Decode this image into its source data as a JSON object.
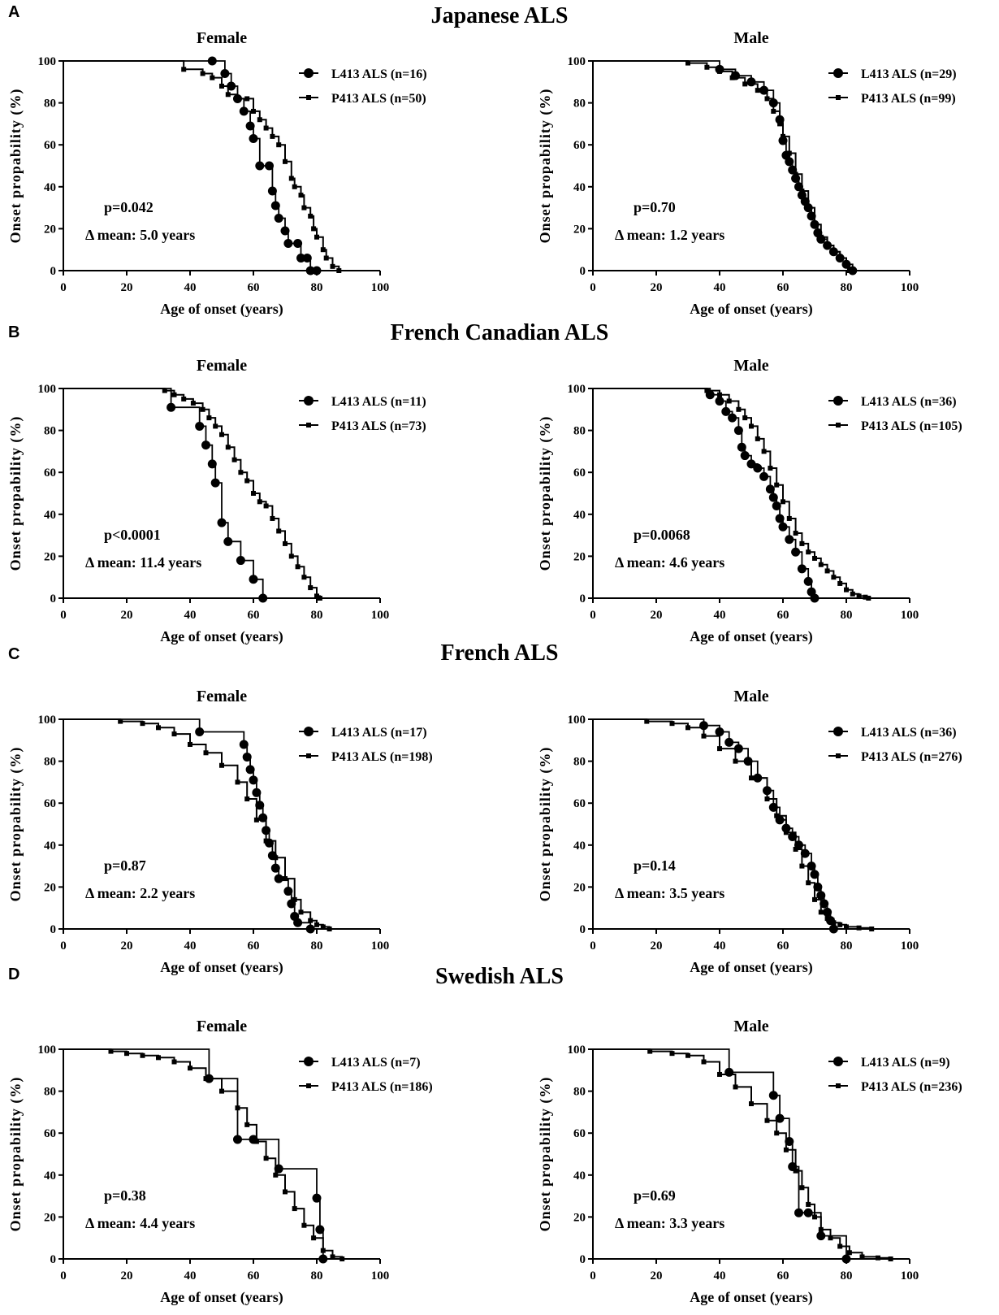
{
  "panels": [
    {
      "letter": "A",
      "title": "Japanese ALS"
    },
    {
      "letter": "B",
      "title": "French Canadian ALS"
    },
    {
      "letter": "C",
      "title": "French ALS"
    },
    {
      "letter": "D",
      "title": "Swedish ALS"
    }
  ],
  "chart_data": [
    {
      "type": "line",
      "panel": "A",
      "title": "Female",
      "xlabel": "Age of onset (years)",
      "ylabel": "Onset propability (%)",
      "xlim": [
        0,
        100
      ],
      "ylim": [
        0,
        100
      ],
      "xticks": [
        0,
        20,
        40,
        60,
        80,
        100
      ],
      "yticks": [
        0,
        20,
        40,
        60,
        80,
        100
      ],
      "legend": [
        "L413 ALS (n=16)",
        "P413 ALS (n=50)"
      ],
      "annotations": [
        "p=0.042",
        "Δ mean: 5.0 years"
      ],
      "series": [
        {
          "name": "L413 ALS (n=16)",
          "marker": "circle",
          "x": [
            0,
            47,
            51,
            53,
            55,
            57,
            59,
            60,
            62,
            65,
            66,
            67,
            68,
            70,
            71,
            74,
            75,
            77,
            78,
            80
          ],
          "y": [
            100,
            100,
            94,
            88,
            82,
            76,
            69,
            63,
            50,
            50,
            38,
            31,
            25,
            19,
            13,
            13,
            6,
            6,
            0,
            0
          ]
        },
        {
          "name": "P413 ALS (n=50)",
          "marker": "square",
          "x": [
            0,
            38,
            44,
            47,
            50,
            52,
            55,
            58,
            60,
            62,
            64,
            66,
            68,
            70,
            72,
            73,
            75,
            76,
            78,
            79,
            80,
            82,
            83,
            85,
            87
          ],
          "y": [
            100,
            96,
            94,
            92,
            88,
            84,
            82,
            82,
            76,
            72,
            68,
            64,
            60,
            52,
            44,
            40,
            36,
            30,
            26,
            20,
            16,
            10,
            6,
            2,
            0
          ]
        }
      ]
    },
    {
      "type": "line",
      "panel": "A",
      "title": "Male",
      "xlabel": "Age of onset (years)",
      "ylabel": "Onset propability (%)",
      "xlim": [
        0,
        100
      ],
      "ylim": [
        0,
        100
      ],
      "xticks": [
        0,
        20,
        40,
        60,
        80,
        100
      ],
      "yticks": [
        0,
        20,
        40,
        60,
        80,
        100
      ],
      "legend": [
        "L413 ALS (n=29)",
        "P413 ALS (n=99)"
      ],
      "annotations": [
        "p=0.70",
        "Δ mean: 1.2 years"
      ],
      "series": [
        {
          "name": "L413 ALS (n=29)",
          "marker": "circle",
          "x": [
            0,
            40,
            45,
            50,
            54,
            57,
            59,
            60,
            61,
            62,
            63,
            64,
            65,
            66,
            67,
            68,
            69,
            70,
            71,
            72,
            74,
            76,
            78,
            80,
            82
          ],
          "y": [
            100,
            96,
            93,
            90,
            86,
            80,
            72,
            62,
            55,
            52,
            48,
            44,
            40,
            36,
            33,
            30,
            26,
            22,
            18,
            15,
            12,
            9,
            6,
            3,
            0
          ]
        },
        {
          "name": "P413 ALS (n=99)",
          "marker": "square",
          "x": [
            0,
            30,
            36,
            40,
            44,
            48,
            52,
            55,
            57,
            59,
            60,
            62,
            64,
            66,
            68,
            70,
            72,
            74,
            76,
            78,
            80,
            81
          ],
          "y": [
            100,
            99,
            97,
            95,
            92,
            89,
            86,
            82,
            76,
            70,
            64,
            56,
            46,
            38,
            30,
            22,
            16,
            12,
            9,
            6,
            3,
            0
          ]
        }
      ]
    },
    {
      "type": "line",
      "panel": "B",
      "title": "Female",
      "xlabel": "Age of onset (years)",
      "ylabel": "Onset propability (%)",
      "xlim": [
        0,
        100
      ],
      "ylim": [
        0,
        100
      ],
      "xticks": [
        0,
        20,
        40,
        60,
        80,
        100
      ],
      "yticks": [
        0,
        20,
        40,
        60,
        80,
        100
      ],
      "legend": [
        "L413 ALS (n=11)",
        "P413 ALS (n=73)"
      ],
      "annotations": [
        "p<0.0001",
        "Δ mean: 11.4 years"
      ],
      "series": [
        {
          "name": "L413 ALS (n=11)",
          "marker": "circle",
          "x": [
            0,
            34,
            43,
            45,
            47,
            48,
            50,
            52,
            56,
            60,
            63
          ],
          "y": [
            100,
            91,
            82,
            73,
            64,
            55,
            36,
            27,
            18,
            9,
            0
          ]
        },
        {
          "name": "P413 ALS (n=73)",
          "marker": "square",
          "x": [
            0,
            32,
            35,
            38,
            41,
            44,
            46,
            48,
            50,
            52,
            54,
            56,
            58,
            60,
            62,
            64,
            66,
            68,
            70,
            72,
            74,
            76,
            78,
            80,
            81
          ],
          "y": [
            100,
            99,
            97,
            95,
            93,
            90,
            86,
            82,
            78,
            72,
            66,
            60,
            56,
            50,
            46,
            44,
            38,
            32,
            26,
            20,
            15,
            10,
            5,
            1,
            0
          ]
        }
      ]
    },
    {
      "type": "line",
      "panel": "B",
      "title": "Male",
      "xlabel": "Age of onset (years)",
      "ylabel": "Onset propability (%)",
      "xlim": [
        0,
        100
      ],
      "ylim": [
        0,
        100
      ],
      "xticks": [
        0,
        20,
        40,
        60,
        80,
        100
      ],
      "yticks": [
        0,
        20,
        40,
        60,
        80,
        100
      ],
      "legend": [
        "L413 ALS (n=36)",
        "P413 ALS (n=105)"
      ],
      "annotations": [
        "p=0.0068",
        "Δ mean: 4.6 years"
      ],
      "series": [
        {
          "name": "L413 ALS (n=36)",
          "marker": "circle",
          "x": [
            0,
            37,
            40,
            42,
            44,
            46,
            47,
            48,
            50,
            52,
            54,
            56,
            57,
            58,
            59,
            60,
            62,
            64,
            66,
            68,
            69,
            70
          ],
          "y": [
            100,
            97,
            94,
            89,
            86,
            80,
            72,
            68,
            64,
            62,
            58,
            52,
            48,
            44,
            38,
            34,
            28,
            22,
            14,
            8,
            3,
            0
          ]
        },
        {
          "name": "P413 ALS (n=105)",
          "marker": "square",
          "x": [
            0,
            36,
            40,
            43,
            46,
            48,
            50,
            52,
            54,
            56,
            58,
            60,
            62,
            64,
            66,
            68,
            70,
            72,
            74,
            76,
            78,
            80,
            82,
            84,
            86,
            87
          ],
          "y": [
            100,
            99,
            97,
            94,
            90,
            86,
            82,
            76,
            70,
            62,
            54,
            46,
            38,
            31,
            26,
            22,
            19,
            16,
            13,
            10,
            7,
            4,
            2,
            1,
            0.5,
            0
          ]
        }
      ]
    },
    {
      "type": "line",
      "panel": "C",
      "title": "Female",
      "xlabel": "Age of onset (years)",
      "ylabel": "Onset propability (%)",
      "xlim": [
        0,
        100
      ],
      "ylim": [
        0,
        100
      ],
      "xticks": [
        0,
        20,
        40,
        60,
        80,
        100
      ],
      "yticks": [
        0,
        20,
        40,
        60,
        80,
        100
      ],
      "legend": [
        "L413 ALS (n=17)",
        "P413 ALS (n=198)"
      ],
      "annotations": [
        "p=0.87",
        "Δ mean: 2.2 years"
      ],
      "series": [
        {
          "name": "L413 ALS (n=17)",
          "marker": "circle",
          "x": [
            0,
            43,
            57,
            58,
            59,
            60,
            61,
            62,
            63,
            64,
            65,
            66,
            67,
            68,
            71,
            72,
            73,
            74,
            78
          ],
          "y": [
            100,
            94,
            88,
            82,
            76,
            71,
            65,
            59,
            53,
            47,
            41,
            35,
            29,
            24,
            18,
            12,
            6,
            3,
            0
          ]
        },
        {
          "name": "P413 ALS (n=198)",
          "marker": "square",
          "x": [
            0,
            18,
            25,
            30,
            35,
            40,
            45,
            50,
            55,
            58,
            61,
            64,
            67,
            70,
            73,
            75,
            78,
            80,
            82,
            84
          ],
          "y": [
            100,
            99,
            98,
            96,
            93,
            88,
            84,
            78,
            70,
            62,
            52,
            42,
            34,
            24,
            14,
            8,
            4,
            2,
            1,
            0
          ]
        }
      ]
    },
    {
      "type": "line",
      "panel": "C",
      "title": "Male",
      "xlabel": "Age of onset (years)",
      "ylabel": "Onset propability (%)",
      "xlim": [
        0,
        100
      ],
      "ylim": [
        0,
        100
      ],
      "xticks": [
        0,
        20,
        40,
        60,
        80,
        100
      ],
      "yticks": [
        0,
        20,
        40,
        60,
        80,
        100
      ],
      "legend": [
        "L413 ALS (n=36)",
        "P413 ALS (n=276)"
      ],
      "annotations": [
        "p=0.14",
        "Δ mean: 3.5 years"
      ],
      "series": [
        {
          "name": "L413 ALS (n=36)",
          "marker": "circle",
          "x": [
            0,
            35,
            40,
            43,
            46,
            49,
            52,
            55,
            57,
            59,
            61,
            63,
            65,
            67,
            69,
            70,
            71,
            72,
            73,
            74,
            75,
            76
          ],
          "y": [
            100,
            97,
            94,
            89,
            86,
            80,
            72,
            66,
            58,
            52,
            48,
            44,
            40,
            36,
            30,
            26,
            20,
            16,
            12,
            8,
            4,
            0
          ]
        },
        {
          "name": "P413 ALS (n=276)",
          "marker": "square",
          "x": [
            0,
            17,
            25,
            30,
            35,
            40,
            45,
            50,
            55,
            58,
            61,
            64,
            66,
            68,
            70,
            72,
            74,
            76,
            78,
            80,
            84,
            88
          ],
          "y": [
            100,
            99,
            98,
            96,
            92,
            86,
            80,
            72,
            62,
            54,
            46,
            38,
            30,
            22,
            14,
            8,
            5,
            3,
            2,
            1,
            0.5,
            0
          ]
        }
      ]
    },
    {
      "type": "line",
      "panel": "D",
      "title": "Female",
      "xlabel": "Age of onset (years)",
      "ylabel": "Onset propability (%)",
      "xlim": [
        0,
        100
      ],
      "ylim": [
        0,
        100
      ],
      "xticks": [
        0,
        20,
        40,
        60,
        80,
        100
      ],
      "yticks": [
        0,
        20,
        40,
        60,
        80,
        100
      ],
      "legend": [
        "L413 ALS (n=7)",
        "P413 ALS (n=186)"
      ],
      "annotations": [
        "p=0.38",
        "Δ mean: 4.4 years"
      ],
      "series": [
        {
          "name": "L413 ALS (n=7)",
          "marker": "circle",
          "x": [
            0,
            46,
            55,
            60,
            68,
            80,
            81,
            82
          ],
          "y": [
            100,
            86,
            57,
            57,
            43,
            29,
            14,
            0
          ]
        },
        {
          "name": "P413 ALS (n=186)",
          "marker": "square",
          "x": [
            0,
            15,
            20,
            25,
            30,
            35,
            40,
            45,
            50,
            55,
            58,
            61,
            64,
            67,
            70,
            73,
            76,
            79,
            82,
            85,
            88
          ],
          "y": [
            100,
            99,
            98,
            97,
            96,
            94,
            91,
            86,
            80,
            72,
            64,
            56,
            48,
            40,
            32,
            24,
            16,
            10,
            4,
            1,
            0
          ]
        }
      ]
    },
    {
      "type": "line",
      "panel": "D",
      "title": "Male",
      "xlabel": "Age of onset (years)",
      "ylabel": "Onset propability (%)",
      "xlim": [
        0,
        100
      ],
      "ylim": [
        0,
        100
      ],
      "xticks": [
        0,
        20,
        40,
        60,
        80,
        100
      ],
      "yticks": [
        0,
        20,
        40,
        60,
        80,
        100
      ],
      "legend": [
        "L413 ALS (n=9)",
        "P413 ALS (n=236)"
      ],
      "annotations": [
        "p=0.69",
        "Δ mean: 3.3 years"
      ],
      "series": [
        {
          "name": "L413 ALS (n=9)",
          "marker": "circle",
          "x": [
            0,
            43,
            57,
            59,
            62,
            63,
            65,
            68,
            72,
            80
          ],
          "y": [
            100,
            89,
            78,
            67,
            56,
            44,
            22,
            22,
            11,
            0
          ]
        },
        {
          "name": "P413 ALS (n=236)",
          "marker": "square",
          "x": [
            0,
            18,
            25,
            30,
            35,
            40,
            45,
            50,
            55,
            58,
            61,
            64,
            66,
            68,
            70,
            72,
            75,
            78,
            81,
            85,
            90,
            94
          ],
          "y": [
            100,
            99,
            98,
            97,
            94,
            88,
            82,
            74,
            66,
            60,
            52,
            42,
            34,
            26,
            20,
            14,
            10,
            6,
            3,
            1,
            0.5,
            0
          ]
        }
      ]
    }
  ]
}
